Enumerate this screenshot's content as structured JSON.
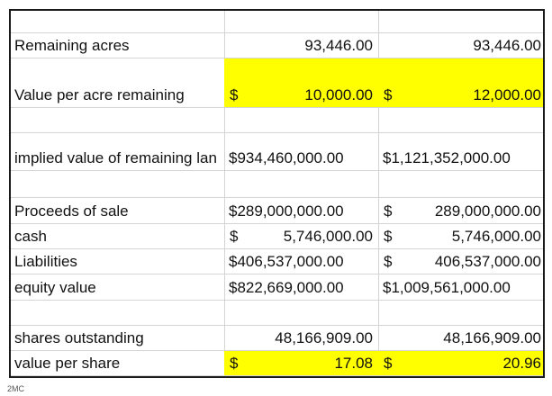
{
  "rows": [
    {
      "label": "Remaining acres",
      "v1": "93,446.00",
      "v2": "93,446.00"
    },
    {
      "label": "Value per acre remaining",
      "v1_cur": "$",
      "v1": "10,000.00",
      "v2_cur": "$",
      "v2": "12,000.00"
    },
    {
      "label": "implied value of remaining lan",
      "v1_full": "$934,460,000.00",
      "v2_full": "$1,121,352,000.00"
    },
    {
      "label": "Proceeds of sale",
      "v1_full": "$289,000,000.00",
      "v2_cur": "$",
      "v2": "289,000,000.00"
    },
    {
      "label": "cash",
      "v1_cur": "$",
      "v1": "5,746,000.00",
      "v2_cur": "$",
      "v2": "5,746,000.00"
    },
    {
      "label": "Liabilities",
      "v1_full": "$406,537,000.00",
      "v2_cur": "$",
      "v2": "406,537,000.00"
    },
    {
      "label": "equity value",
      "v1_full": "$822,669,000.00",
      "v2_full": "$1,009,561,000.00"
    },
    {
      "label": "shares outstanding",
      "v1": "48,166,909.00",
      "v2": "48,166,909.00"
    },
    {
      "label": "value per share",
      "v1_cur": "$",
      "v1": "17.08",
      "v2_cur": "$",
      "v2": "20.96"
    }
  ],
  "caption": "2MC",
  "colors": {
    "highlight": "#ffff00",
    "gridline": "#d4d4d4",
    "border": "#1a1a1a"
  }
}
